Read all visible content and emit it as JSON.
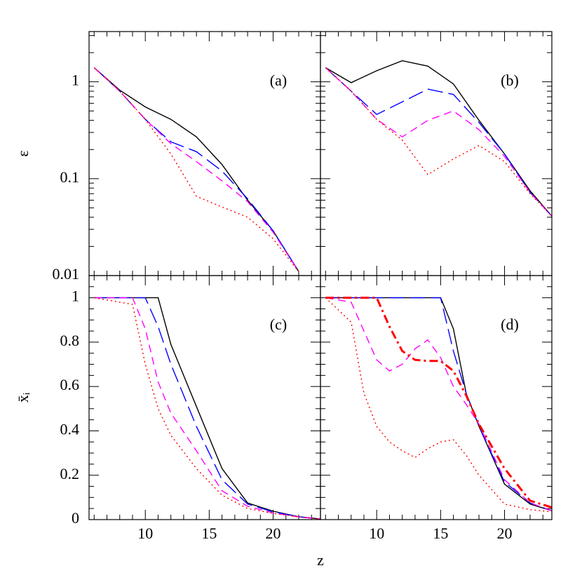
{
  "chart_data": [
    {
      "type": "line",
      "annotation": "(a)",
      "ylabel": "ε",
      "log": true,
      "x": [
        6,
        8,
        10,
        12,
        14,
        16,
        18,
        20,
        22
      ],
      "xlim": [
        5.6,
        23.7
      ],
      "ylim": [
        0.01,
        3.3
      ],
      "xticks": [
        10,
        15,
        20
      ],
      "xminorticks": [
        6,
        7,
        8,
        9,
        11,
        12,
        13,
        14,
        16,
        17,
        18,
        19,
        21,
        22,
        23
      ],
      "yticks": [
        0.01,
        0.1,
        1
      ],
      "yminorticks": [
        0.02,
        0.03,
        0.04,
        0.05,
        0.06,
        0.07,
        0.08,
        0.09,
        0.2,
        0.3,
        0.4,
        0.5,
        0.6,
        0.7,
        0.8,
        0.9,
        2,
        3
      ],
      "xtick_labels": false,
      "ytick_labels": true,
      "series": [
        {
          "color": "#000000",
          "style": "solid",
          "values": [
            1.4,
            0.82,
            0.55,
            0.41,
            0.27,
            0.14,
            0.06,
            0.029,
            0.011
          ]
        },
        {
          "color": "#0000ff",
          "style": "long-dash",
          "values": [
            1.4,
            0.8,
            0.41,
            0.24,
            0.19,
            0.12,
            0.062,
            0.029,
            0.011
          ]
        },
        {
          "color": "#ff00ff",
          "style": "dash",
          "values": [
            1.4,
            0.8,
            0.41,
            0.23,
            0.15,
            0.095,
            0.058,
            0.028,
            0.011
          ]
        },
        {
          "color": "#ff0000",
          "style": "dotted",
          "values": [
            1.4,
            0.8,
            0.41,
            0.18,
            0.066,
            0.051,
            0.04,
            0.024,
            0.011
          ]
        }
      ]
    },
    {
      "type": "line",
      "annotation": "(b)",
      "log": true,
      "x": [
        6,
        8,
        10,
        12,
        14,
        16,
        18,
        20,
        22,
        23.7
      ],
      "xlim": [
        5.6,
        23.7
      ],
      "ylim": [
        0.01,
        3.3
      ],
      "xticks": [
        10,
        15,
        20
      ],
      "xminorticks": [
        6,
        7,
        8,
        9,
        11,
        12,
        13,
        14,
        16,
        17,
        18,
        19,
        21,
        22,
        23
      ],
      "yticks": [
        0.01,
        0.1,
        1
      ],
      "yminorticks": [
        0.02,
        0.03,
        0.04,
        0.05,
        0.06,
        0.07,
        0.08,
        0.09,
        0.2,
        0.3,
        0.4,
        0.5,
        0.6,
        0.7,
        0.8,
        0.9,
        2,
        3
      ],
      "xtick_labels": false,
      "ytick_labels": false,
      "series": [
        {
          "color": "#000000",
          "style": "solid",
          "values": [
            1.4,
            0.98,
            1.3,
            1.65,
            1.45,
            0.95,
            0.4,
            0.18,
            0.075,
            0.041
          ]
        },
        {
          "color": "#0000ff",
          "style": "long-dash",
          "values": [
            1.4,
            0.8,
            0.46,
            0.62,
            0.84,
            0.74,
            0.38,
            0.18,
            0.072,
            0.041
          ]
        },
        {
          "color": "#ff00ff",
          "style": "dash",
          "values": [
            1.4,
            0.8,
            0.41,
            0.27,
            0.4,
            0.5,
            0.32,
            0.17,
            0.072,
            0.041
          ]
        },
        {
          "color": "#ff0000",
          "style": "dotted",
          "values": [
            1.4,
            0.8,
            0.41,
            0.25,
            0.11,
            0.16,
            0.22,
            0.15,
            0.07,
            0.041
          ]
        }
      ]
    },
    {
      "type": "line",
      "annotation": "(c)",
      "ylabel": "x̄ᵢ",
      "xlabel": "z",
      "log": false,
      "x": [
        6,
        9,
        10,
        11,
        12,
        14,
        16,
        18,
        20,
        22,
        23.7
      ],
      "xlim": [
        5.6,
        23.7
      ],
      "ylim": [
        0,
        1.1
      ],
      "xticks": [
        10,
        15,
        20
      ],
      "xminorticks": [
        6,
        7,
        8,
        9,
        11,
        12,
        13,
        14,
        16,
        17,
        18,
        19,
        21,
        22,
        23
      ],
      "yticks": [
        0,
        0.2,
        0.4,
        0.6,
        0.8,
        1
      ],
      "yminorticks": [
        0.05,
        0.1,
        0.15,
        0.25,
        0.3,
        0.35,
        0.45,
        0.5,
        0.55,
        0.65,
        0.7,
        0.75,
        0.85,
        0.9,
        0.95,
        1.05
      ],
      "xtick_labels": true,
      "ytick_labels": true,
      "series": [
        {
          "color": "#000000",
          "style": "solid",
          "values": [
            1,
            1,
            1,
            1,
            0.79,
            0.51,
            0.23,
            0.075,
            0.038,
            0.013,
            0.003
          ]
        },
        {
          "color": "#0000ff",
          "style": "long-dash",
          "values": [
            1,
            1,
            1,
            0.87,
            0.7,
            0.42,
            0.18,
            0.07,
            0.035,
            0.013,
            0.003
          ]
        },
        {
          "color": "#ff00ff",
          "style": "dash",
          "values": [
            1,
            1,
            0.86,
            0.62,
            0.48,
            0.31,
            0.13,
            0.06,
            0.03,
            0.012,
            0.003
          ]
        },
        {
          "color": "#ff0000",
          "style": "dotted",
          "values": [
            1,
            0.97,
            0.7,
            0.5,
            0.38,
            0.23,
            0.11,
            0.05,
            0.028,
            0.012,
            0.003
          ]
        }
      ]
    },
    {
      "type": "line",
      "annotation": "(d)",
      "log": false,
      "x": [
        6,
        8,
        9,
        10,
        11,
        12,
        13,
        14,
        15,
        16,
        17,
        18,
        20,
        22,
        23.7
      ],
      "xlim": [
        5.6,
        23.7
      ],
      "ylim": [
        0,
        1.1
      ],
      "xticks": [
        10,
        15,
        20
      ],
      "xminorticks": [
        6,
        7,
        8,
        9,
        11,
        12,
        13,
        14,
        16,
        17,
        18,
        19,
        21,
        22,
        23
      ],
      "yticks": [
        0,
        0.2,
        0.4,
        0.6,
        0.8,
        1
      ],
      "yminorticks": [
        0.05,
        0.1,
        0.15,
        0.25,
        0.3,
        0.35,
        0.45,
        0.5,
        0.55,
        0.65,
        0.7,
        0.75,
        0.85,
        0.9,
        0.95,
        1.05
      ],
      "xtick_labels": true,
      "ytick_labels": false,
      "series": [
        {
          "color": "#000000",
          "style": "solid",
          "values": [
            1,
            1,
            1,
            1,
            1,
            1,
            1,
            1,
            1,
            0.86,
            0.57,
            0.42,
            0.16,
            0.07,
            0.04
          ]
        },
        {
          "color": "#0000ff",
          "style": "long-dash",
          "values": [
            1,
            1,
            1,
            1,
            1,
            1,
            1,
            1,
            1,
            0.76,
            0.57,
            0.42,
            0.17,
            0.075,
            0.04
          ]
        },
        {
          "color": "#ff00ff",
          "style": "dash",
          "values": [
            1,
            0.98,
            0.85,
            0.72,
            0.67,
            0.7,
            0.77,
            0.81,
            0.73,
            0.6,
            0.52,
            0.43,
            0.18,
            0.075,
            0.04
          ]
        },
        {
          "color": "#ff0000",
          "style": "dotted",
          "values": [
            1,
            0.89,
            0.57,
            0.42,
            0.35,
            0.31,
            0.28,
            0.32,
            0.35,
            0.36,
            0.29,
            0.2,
            0.07,
            0.045,
            0.035
          ]
        },
        {
          "color": "#ff0000",
          "style": "dash-dot",
          "values": [
            1,
            1,
            1,
            1,
            0.87,
            0.76,
            0.72,
            0.715,
            0.715,
            0.67,
            0.56,
            0.43,
            0.23,
            0.085,
            0.055
          ]
        }
      ]
    }
  ]
}
